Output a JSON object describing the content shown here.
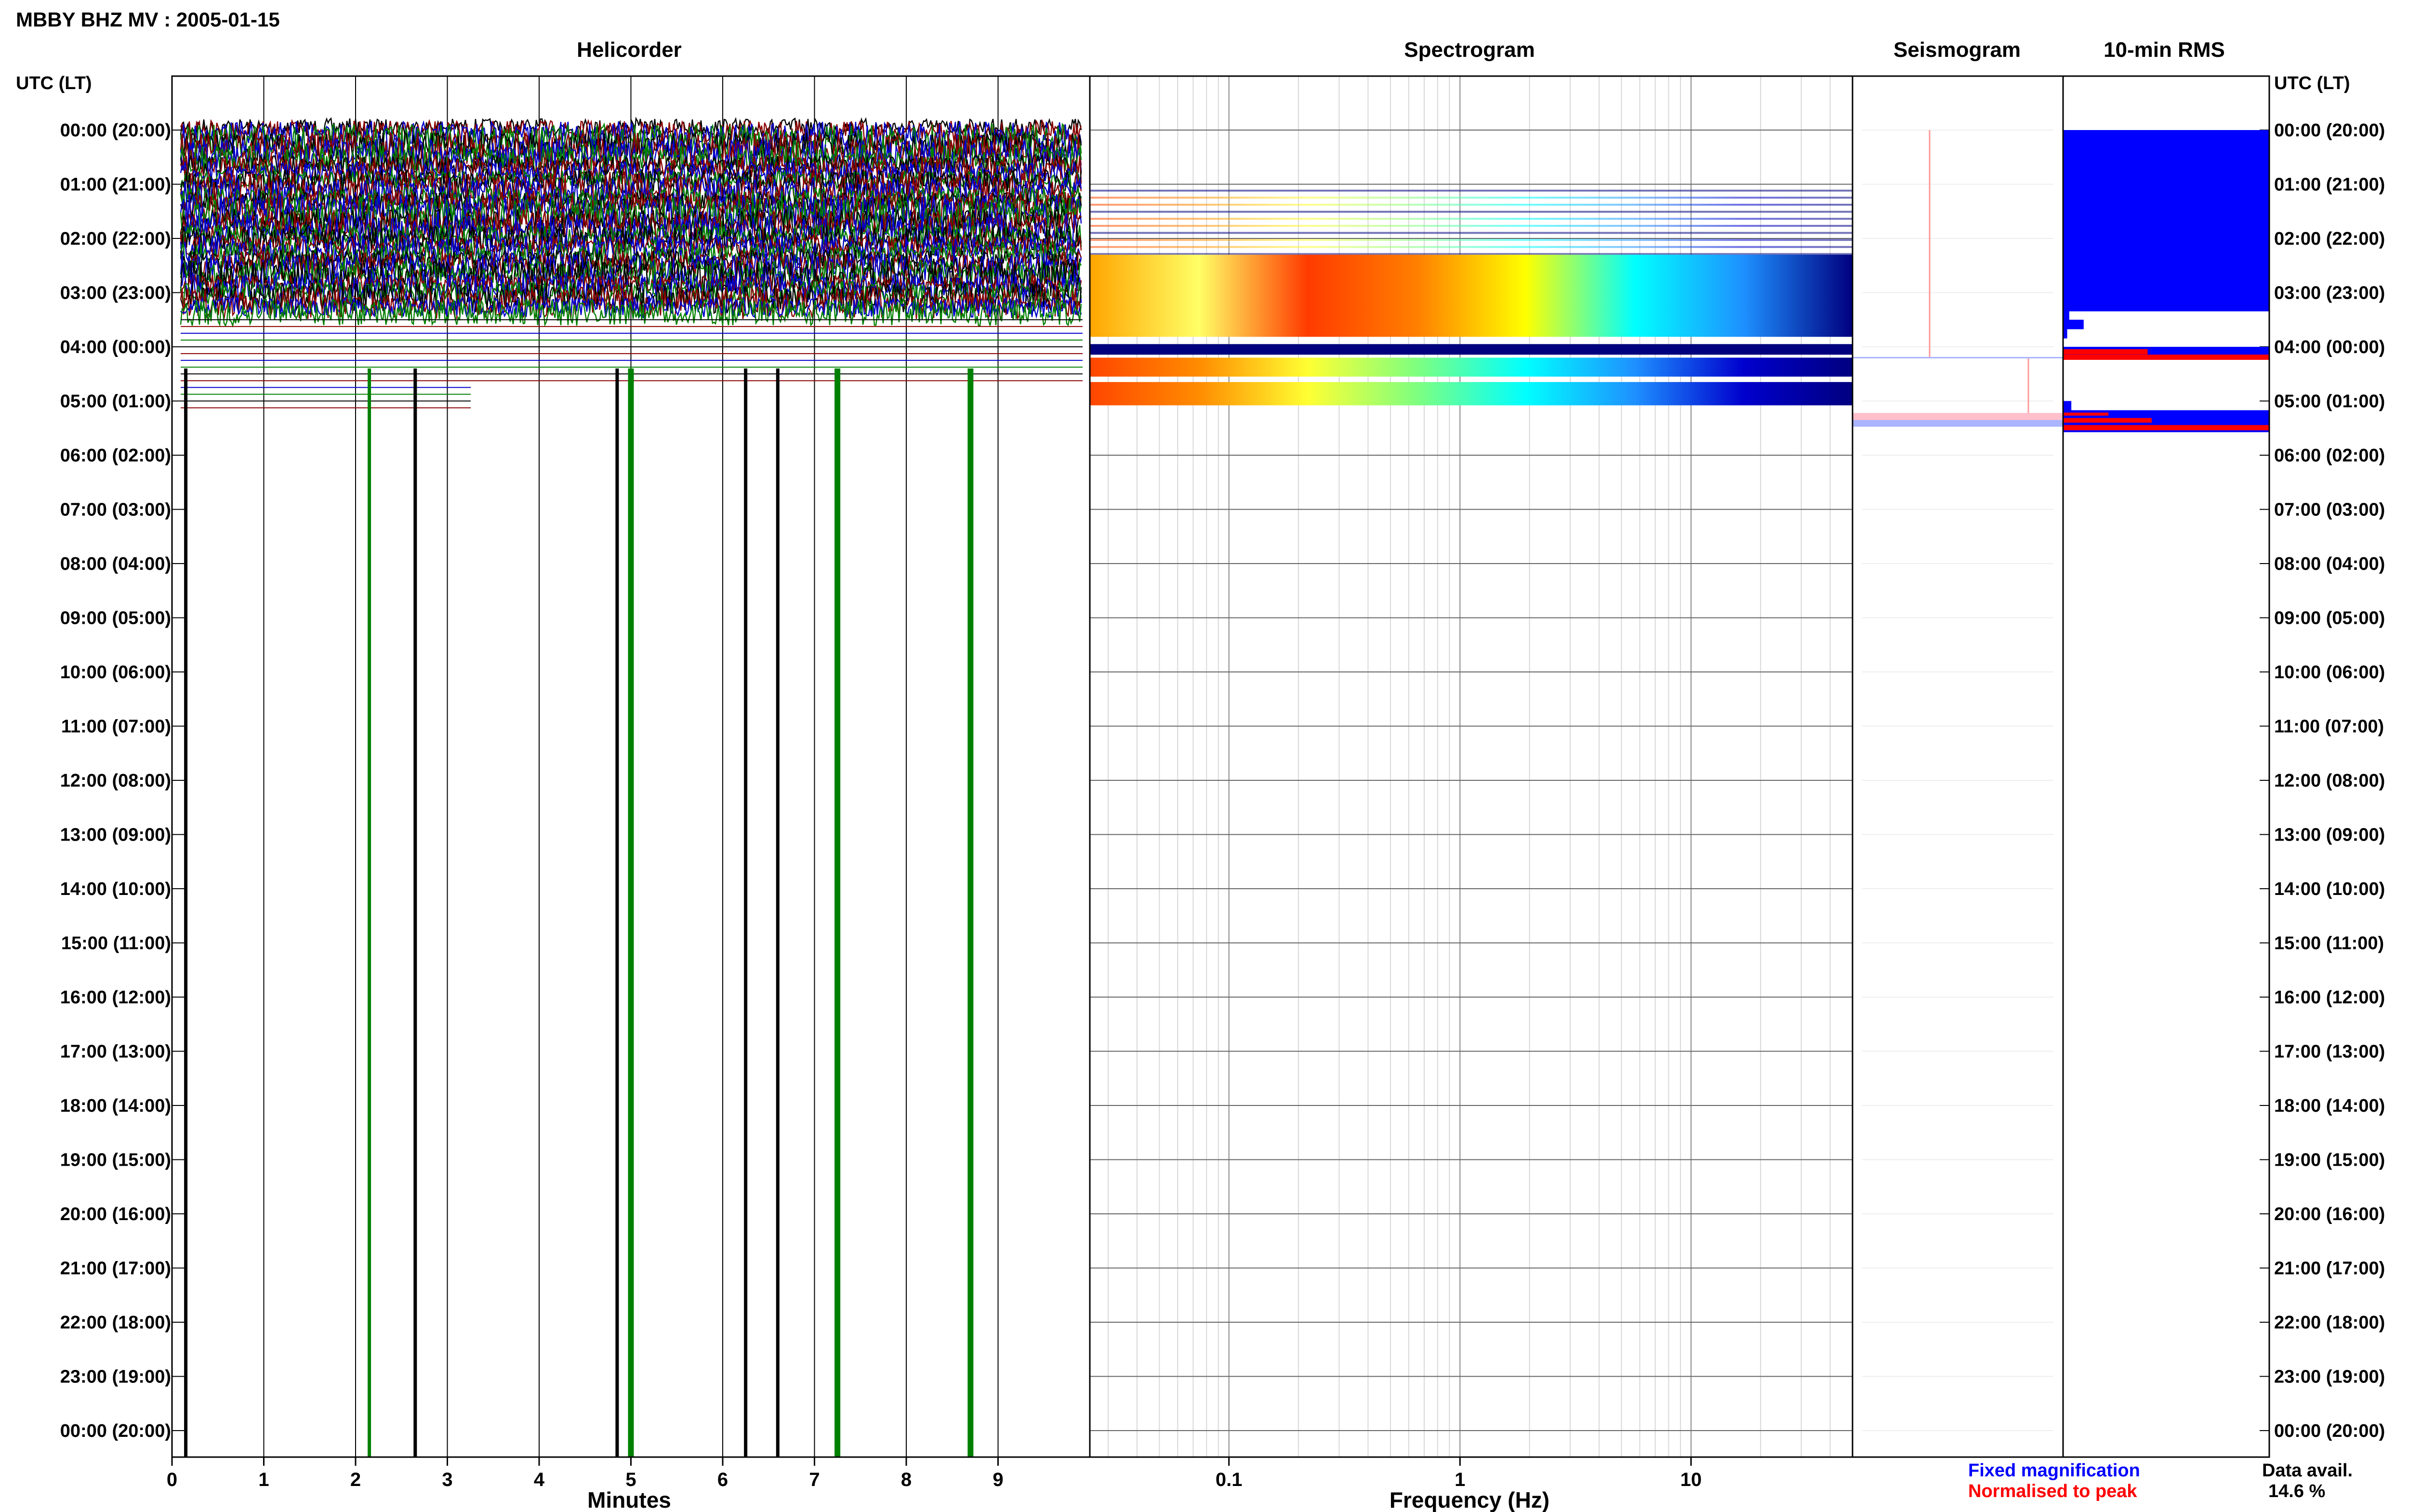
{
  "title": "MBBY BHZ MV : 2005-01-15",
  "panels": {
    "helicorder": "Helicorder",
    "spectrogram": "Spectrogram",
    "seismogram": "Seismogram",
    "rms": "10-min RMS"
  },
  "time_axis_label": "UTC (LT)",
  "time_labels": [
    "00:00 (20:00)",
    "01:00 (21:00)",
    "02:00 (22:00)",
    "03:00 (23:00)",
    "04:00 (00:00)",
    "05:00 (01:00)",
    "06:00 (02:00)",
    "07:00 (03:00)",
    "08:00 (04:00)",
    "09:00 (05:00)",
    "10:00 (06:00)",
    "11:00 (07:00)",
    "12:00 (08:00)",
    "13:00 (09:00)",
    "14:00 (10:00)",
    "15:00 (11:00)",
    "16:00 (12:00)",
    "17:00 (13:00)",
    "18:00 (14:00)",
    "19:00 (15:00)",
    "20:00 (16:00)",
    "21:00 (17:00)",
    "22:00 (18:00)",
    "23:00 (19:00)",
    "00:00 (20:00)"
  ],
  "legend": {
    "fixed": "Fixed magnification",
    "normalised": "Normalised to peak",
    "fixed_color": "#0000ff",
    "normalised_color": "#ff0000"
  },
  "data_avail": {
    "label": "Data avail.",
    "value": "14.6 %"
  },
  "chart_data": [
    {
      "type": "line",
      "panel": "Helicorder",
      "xlabel": "Minutes",
      "xlim": [
        0,
        10
      ],
      "x_ticks": [
        "0",
        "1",
        "2",
        "3",
        "4",
        "5",
        "6",
        "7",
        "8",
        "9"
      ],
      "trace_colors": [
        "#000000",
        "#8b0000",
        "#0000cd",
        "#008000"
      ],
      "active_hours_utc": [
        0,
        5.2
      ],
      "spike_minutes": [
        {
          "minute": 0.15,
          "color": "#000000"
        },
        {
          "minute": 2.15,
          "color": "#008000"
        },
        {
          "minute": 2.65,
          "color": "#000000"
        },
        {
          "minute": 4.85,
          "color": "#000000"
        },
        {
          "minute": 5.0,
          "color": "#008000"
        },
        {
          "minute": 6.25,
          "color": "#000000"
        },
        {
          "minute": 6.6,
          "color": "#000000"
        },
        {
          "minute": 7.25,
          "color": "#008000"
        },
        {
          "minute": 8.7,
          "color": "#008000"
        }
      ]
    },
    {
      "type": "heatmap",
      "panel": "Spectrogram",
      "xlabel": "Frequency (Hz)",
      "x_scale": "log",
      "xlim": [
        0.025,
        50
      ],
      "x_ticks": [
        "0.1",
        "1",
        "10"
      ],
      "colormap": [
        "#00007f",
        "#0000ff",
        "#00ffff",
        "#ffff00",
        "#ff7f00",
        "#ff0000"
      ],
      "active_hours_utc": [
        1.0,
        5.1
      ]
    },
    {
      "type": "line",
      "panel": "Seismogram",
      "color": "#ff9999",
      "active_hours_utc": [
        0.0,
        5.4
      ]
    },
    {
      "type": "bar",
      "panel": "10-min RMS",
      "orientation": "horizontal",
      "series": [
        {
          "name": "Fixed magnification",
          "color": "#0000ff"
        },
        {
          "name": "Normalised to peak",
          "color": "#ff0000"
        }
      ],
      "bins": [
        {
          "hour": 0.0,
          "fixed": 1.0,
          "norm": 0
        },
        {
          "hour": 0.17,
          "fixed": 1.0,
          "norm": 0
        },
        {
          "hour": 0.33,
          "fixed": 1.0,
          "norm": 0
        },
        {
          "hour": 0.5,
          "fixed": 1.0,
          "norm": 0
        },
        {
          "hour": 0.67,
          "fixed": 1.0,
          "norm": 0
        },
        {
          "hour": 0.83,
          "fixed": 1.0,
          "norm": 0
        },
        {
          "hour": 1.0,
          "fixed": 1.0,
          "norm": 0
        },
        {
          "hour": 1.17,
          "fixed": 1.0,
          "norm": 0
        },
        {
          "hour": 1.33,
          "fixed": 1.0,
          "norm": 0
        },
        {
          "hour": 1.5,
          "fixed": 1.0,
          "norm": 0
        },
        {
          "hour": 1.67,
          "fixed": 1.0,
          "norm": 0
        },
        {
          "hour": 1.83,
          "fixed": 1.0,
          "norm": 0
        },
        {
          "hour": 2.0,
          "fixed": 1.0,
          "norm": 0
        },
        {
          "hour": 2.17,
          "fixed": 1.0,
          "norm": 0
        },
        {
          "hour": 2.33,
          "fixed": 1.0,
          "norm": 0
        },
        {
          "hour": 2.5,
          "fixed": 1.0,
          "norm": 0
        },
        {
          "hour": 2.67,
          "fixed": 1.0,
          "norm": 0
        },
        {
          "hour": 2.83,
          "fixed": 1.0,
          "norm": 0
        },
        {
          "hour": 3.0,
          "fixed": 1.0,
          "norm": 0
        },
        {
          "hour": 3.17,
          "fixed": 1.0,
          "norm": 0
        },
        {
          "hour": 3.33,
          "fixed": 0.03,
          "norm": 0
        },
        {
          "hour": 3.5,
          "fixed": 0.1,
          "norm": 0
        },
        {
          "hour": 3.67,
          "fixed": 0.02,
          "norm": 0
        },
        {
          "hour": 4.0,
          "fixed": 1.0,
          "norm": 0.41
        },
        {
          "hour": 4.1,
          "fixed": 0.0,
          "norm": 1.0
        },
        {
          "hour": 5.0,
          "fixed": 0.04,
          "norm": 0
        },
        {
          "hour": 5.17,
          "fixed": 1.0,
          "norm": 0.22
        },
        {
          "hour": 5.27,
          "fixed": 1.0,
          "norm": 0.43
        },
        {
          "hour": 5.4,
          "fixed": 1.0,
          "norm": 1.0
        }
      ]
    }
  ]
}
